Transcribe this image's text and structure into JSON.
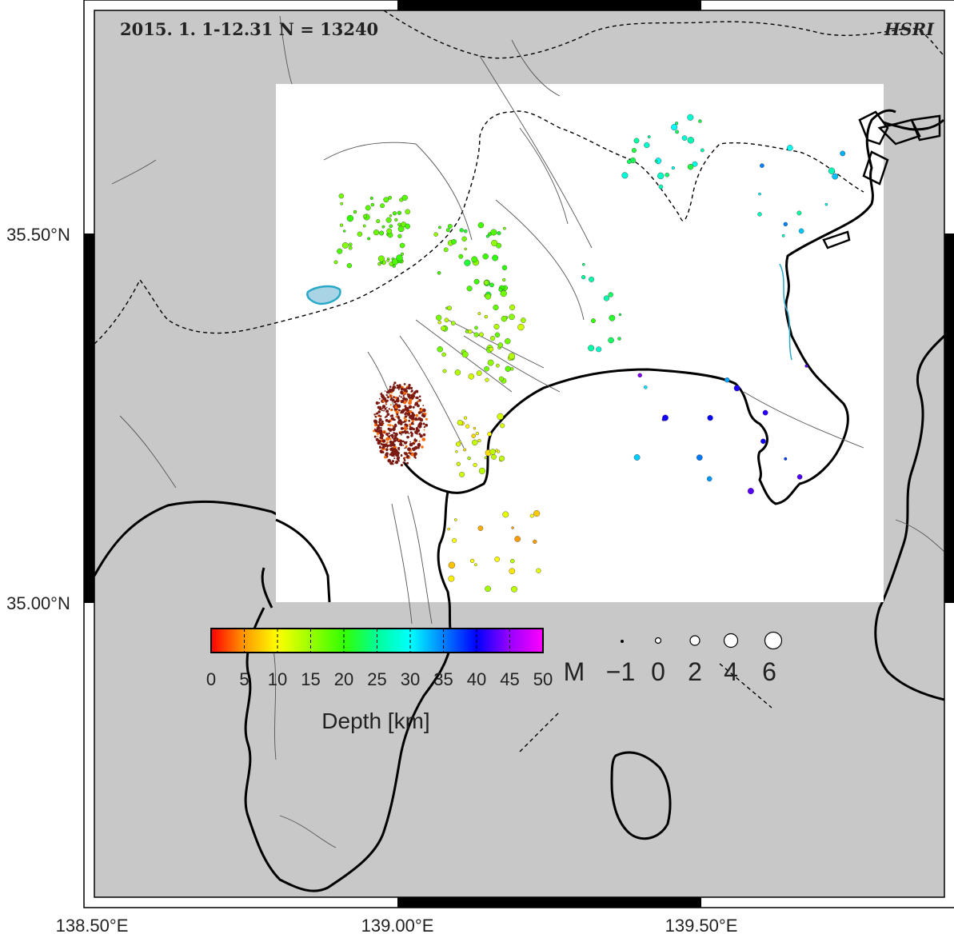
{
  "title": "2015. 1. 1-12.31 N = 13240",
  "organization": "HSRI",
  "axes": {
    "lon_ticks": [
      "138.50°E",
      "139.00°E",
      "139.50°E"
    ],
    "lat_ticks": [
      "35.50°N",
      "35.00°N"
    ]
  },
  "colorbar": {
    "title": "Depth [km]",
    "ticks": [
      "0",
      "5",
      "10",
      "15",
      "20",
      "25",
      "30",
      "35",
      "40",
      "45",
      "50"
    ]
  },
  "magnitude_legend": {
    "label": "M",
    "values": [
      "−1",
      "0",
      "2",
      "4",
      "6"
    ]
  },
  "colors": {
    "land": "#c8c8c8",
    "study_area": "#ffffff",
    "coastline": "#000000",
    "lake": "#a8d4e6",
    "lake_outline": "#2aa8c8",
    "swarm": "#7a1a12"
  }
}
